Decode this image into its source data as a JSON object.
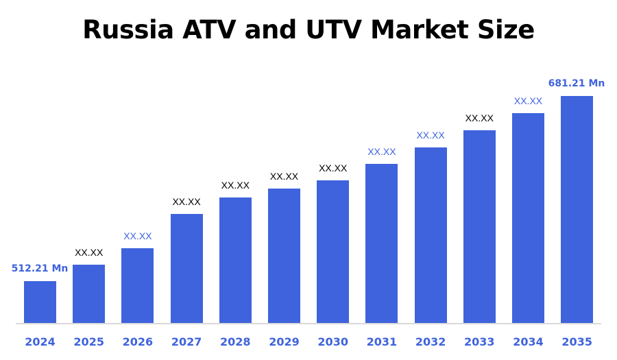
{
  "chart_data": {
    "type": "bar",
    "title": "Russia ATV and UTV Market Size",
    "xlabel": "",
    "ylabel": "",
    "categories": [
      "2024",
      "2025",
      "2026",
      "2027",
      "2028",
      "2029",
      "2030",
      "2031",
      "2032",
      "2033",
      "2034",
      "2035"
    ],
    "values": [
      512.21,
      527.5,
      542.5,
      573.5,
      588.5,
      596.5,
      604.0,
      619.5,
      634.5,
      650.0,
      665.5,
      681.21
    ],
    "data_labels": [
      "512.21 Mn",
      "XX.XX",
      "XX.XX",
      "XX.XX",
      "XX.XX",
      "XX.XX",
      "XX.XX",
      "XX.XX",
      "XX.XX",
      "XX.XX",
      "XX.XX",
      "681.21 Mn"
    ],
    "label_colors": [
      "#3f63dc",
      "#000000",
      "#3f63dc",
      "#000000",
      "#000000",
      "#000000",
      "#000000",
      "#3f63dc",
      "#3f63dc",
      "#000000",
      "#3f63dc",
      "#3f63dc"
    ],
    "bar_color": "#3f63dc",
    "grid": false,
    "legend": null
  }
}
